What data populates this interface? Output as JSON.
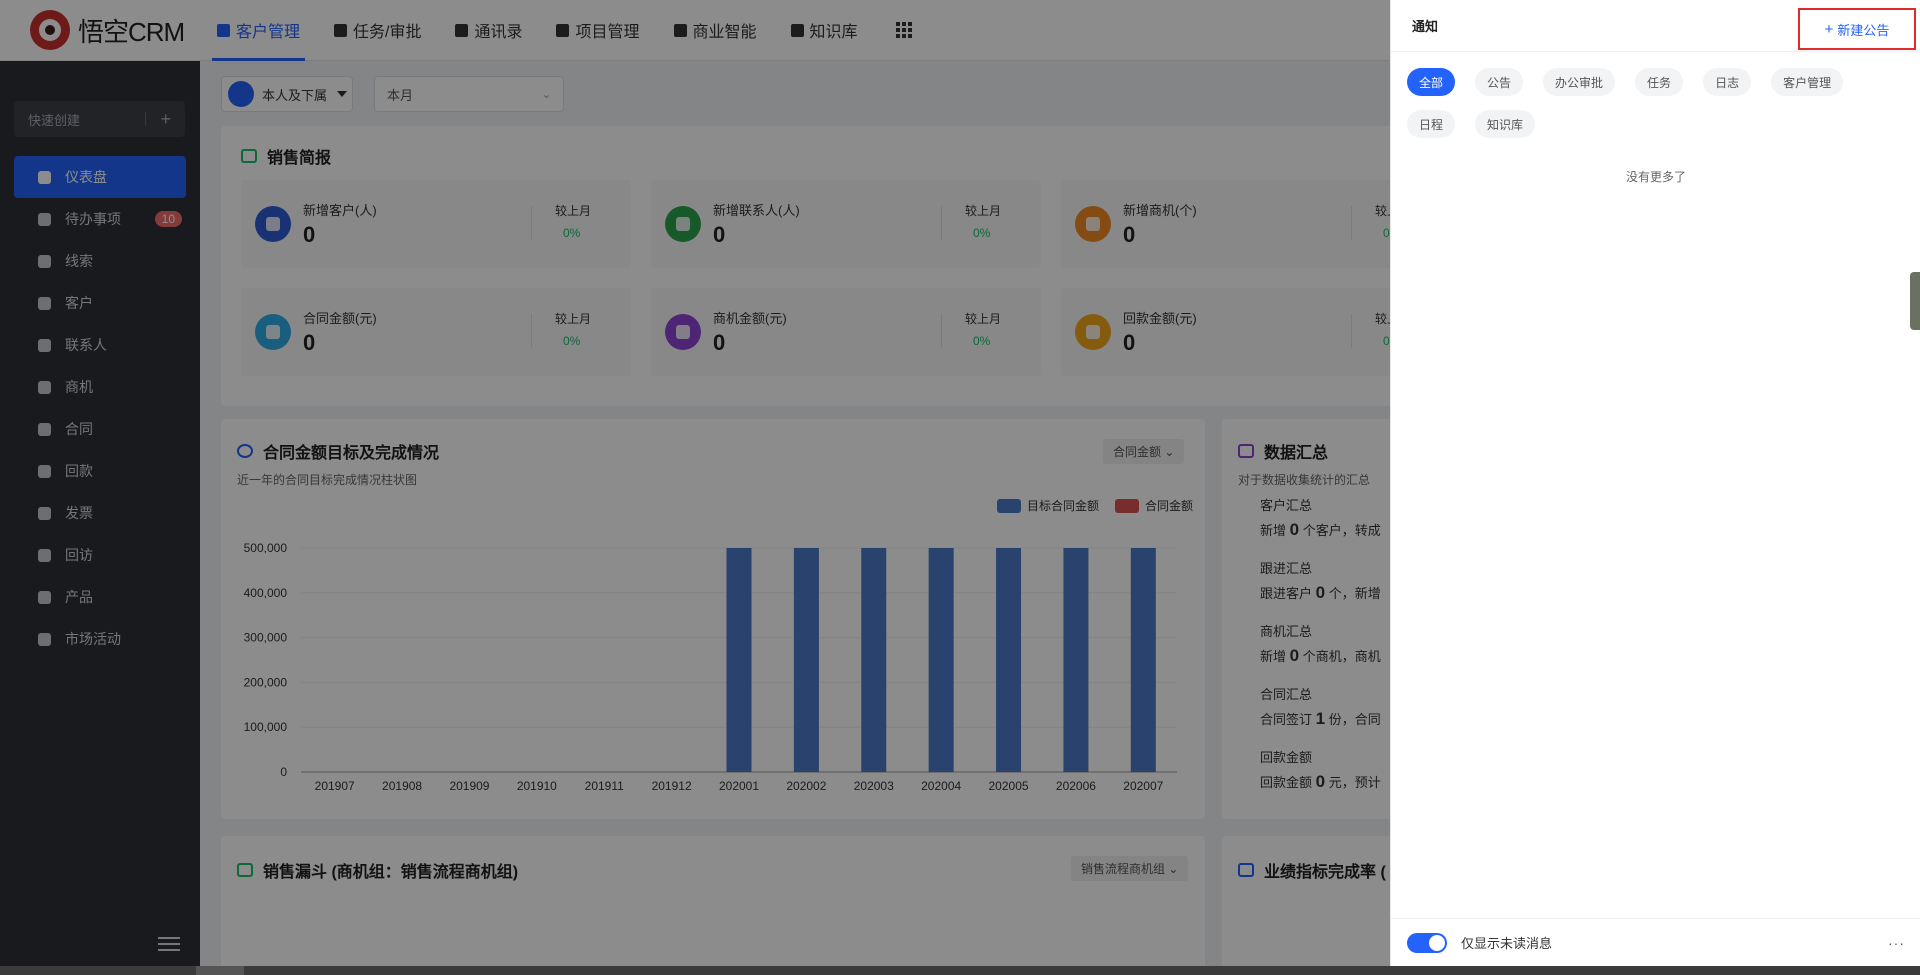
{
  "app": {
    "logo_text": "悟空CRM"
  },
  "nav": [
    {
      "label": "客户管理",
      "icon": "customer-icon",
      "active": true
    },
    {
      "label": "任务/审批",
      "icon": "briefcase-icon"
    },
    {
      "label": "通讯录",
      "icon": "phonebook-icon"
    },
    {
      "label": "项目管理",
      "icon": "project-icon"
    },
    {
      "label": "商业智能",
      "icon": "bi-icon"
    },
    {
      "label": "知识库",
      "icon": "book-icon"
    }
  ],
  "sidebar": {
    "quick_create": "快速创建",
    "items": [
      {
        "label": "仪表盘",
        "icon": "dashboard-icon",
        "active": true
      },
      {
        "label": "待办事项",
        "icon": "chat-icon",
        "badge": "10"
      },
      {
        "label": "线索",
        "icon": "leads-icon"
      },
      {
        "label": "客户",
        "icon": "building-icon"
      },
      {
        "label": "联系人",
        "icon": "contact-icon"
      },
      {
        "label": "商机",
        "icon": "money-icon"
      },
      {
        "label": "合同",
        "icon": "contract-icon"
      },
      {
        "label": "回款",
        "icon": "moneybag-icon"
      },
      {
        "label": "发票",
        "icon": "invoice-icon"
      },
      {
        "label": "回访",
        "icon": "home-icon"
      },
      {
        "label": "产品",
        "icon": "box-icon"
      },
      {
        "label": "市场活动",
        "icon": "send-icon"
      }
    ]
  },
  "filters": {
    "scope": "本人及下属",
    "period": "本月"
  },
  "sales_brief": {
    "title": "销售简报",
    "compare_label": "较上月",
    "stats": [
      {
        "label": "新增客户(人)",
        "value": "0",
        "pct": "0%",
        "color": "#2f5bd3"
      },
      {
        "label": "新增联系人(人)",
        "value": "0",
        "pct": "0%",
        "color": "#2aa34a"
      },
      {
        "label": "新增商机(个)",
        "value": "0",
        "pct": "0%",
        "color": "#f08a24"
      },
      {
        "label": "合同金额(元)",
        "value": "0",
        "pct": "0%",
        "color": "#2ea9e8"
      },
      {
        "label": "商机金额(元)",
        "value": "0",
        "pct": "0%",
        "color": "#8e44d6"
      },
      {
        "label": "回款金额(元)",
        "value": "0",
        "pct": "0%",
        "color": "#f2a81d"
      }
    ]
  },
  "contract_target": {
    "title": "合同金额目标及完成情况",
    "subtitle": "近一年的合同目标完成情况柱状图",
    "dropdown": "合同金额"
  },
  "chart_data": {
    "type": "bar",
    "categories": [
      "201907",
      "201908",
      "201909",
      "201910",
      "201911",
      "201912",
      "202001",
      "202002",
      "202003",
      "202004",
      "202005",
      "202006",
      "202007"
    ],
    "series": [
      {
        "name": "目标合同金额",
        "values": [
          0,
          0,
          0,
          0,
          0,
          0,
          500000,
          500000,
          500000,
          500000,
          500000,
          500000,
          500000
        ],
        "color": "#4e79c8"
      },
      {
        "name": "合同金额",
        "values": [
          0,
          0,
          0,
          0,
          0,
          0,
          0,
          0,
          0,
          0,
          0,
          0,
          0
        ],
        "color": "#d9534f"
      }
    ],
    "ylim": [
      0,
      500000
    ],
    "yticks": [
      "0",
      "100,000",
      "200,000",
      "300,000",
      "400,000",
      "500,000"
    ],
    "legend": "top-right",
    "grid": true
  },
  "data_summary": {
    "title": "数据汇总",
    "subtitle": "对于数据收集统计的汇总",
    "items": [
      {
        "heading": "客户汇总",
        "prefix": "新增 ",
        "num": "0",
        "suffix": " 个客户，转成"
      },
      {
        "heading": "跟进汇总",
        "prefix": "跟进客户 ",
        "num": "0",
        "suffix": " 个，新增"
      },
      {
        "heading": "商机汇总",
        "prefix": "新增 ",
        "num": "0",
        "suffix": " 个商机，商机"
      },
      {
        "heading": "合同汇总",
        "prefix": "合同签订 ",
        "num": "1",
        "suffix": " 份，合同"
      },
      {
        "heading": "回款金额",
        "prefix": "回款金额 ",
        "num": "0",
        "suffix": " 元，预计"
      }
    ]
  },
  "funnel": {
    "title": "销售漏斗 (商机组：销售流程商机组)",
    "dropdown": "销售流程商机组"
  },
  "performance": {
    "title": "业绩指标完成率 ("
  },
  "drawer": {
    "title": "通知",
    "new_button": "新建公告",
    "chips": [
      "全部",
      "公告",
      "办公审批",
      "任务",
      "日志",
      "客户管理",
      "日程",
      "知识库"
    ],
    "empty_text": "没有更多了",
    "unread_toggle_label": "仅显示未读消息",
    "more": "···"
  }
}
